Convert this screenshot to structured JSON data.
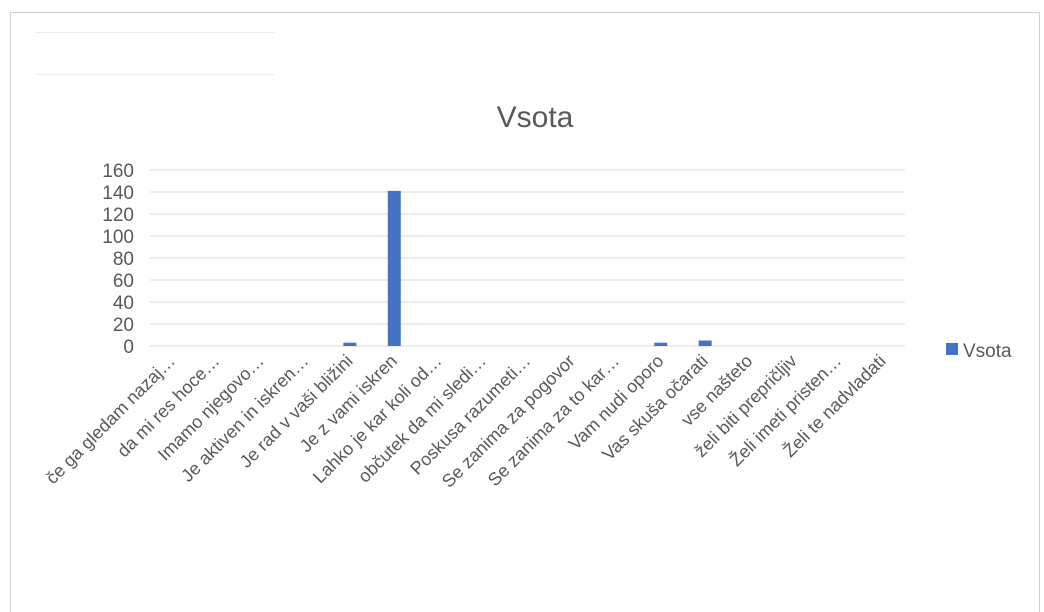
{
  "chart_data": {
    "type": "bar",
    "title": "Vsota",
    "categories": [
      "če ga gledam nazaj…",
      "da mi res hoce…",
      "Imamo njegovo…",
      "Je aktiven in iskren…",
      "Je rad v vaši bližini",
      "Je z vami iskren",
      "Lahko je kar koli od…",
      "občutek da mi sledi…",
      "Poskusa razumeti…",
      "Se zanima za pogovor",
      "Se zanima za to kar…",
      "Vam nudi oporo",
      "Vas skuša očarati",
      "vse našteto",
      "želi biti prepričljiv",
      "Želi imeti pristen…",
      "Želi te nadvladati"
    ],
    "series": [
      {
        "name": "Vsota",
        "values": [
          0,
          0,
          0,
          0,
          3,
          141,
          0,
          0,
          0,
          0,
          0,
          3,
          5,
          0,
          0,
          0,
          0
        ]
      }
    ],
    "ylim": [
      0,
      160
    ],
    "yticks": [
      0,
      20,
      40,
      60,
      80,
      100,
      120,
      140,
      160
    ],
    "xlabel": "",
    "ylabel": "",
    "grid": true,
    "legend": "right",
    "colors": {
      "bar": "#4472c4",
      "grid": "#d9d9d9",
      "text": "#595959"
    }
  }
}
